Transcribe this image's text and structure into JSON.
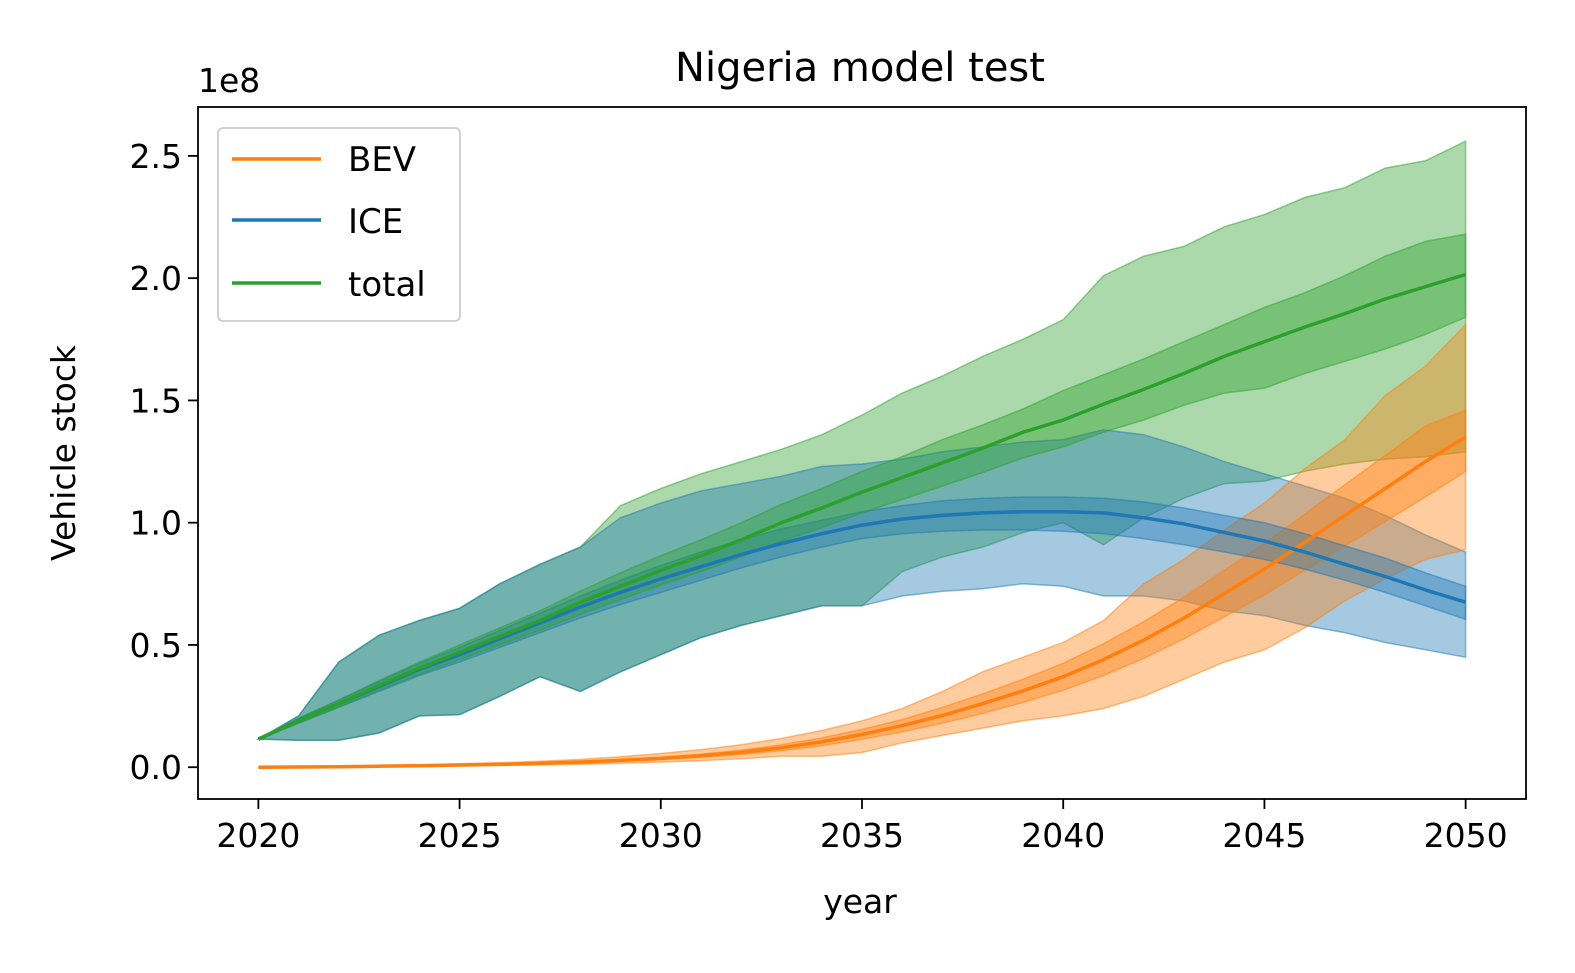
{
  "chart_data": {
    "type": "line",
    "title": "Nigeria model test",
    "xlabel": "year",
    "ylabel": "Vehicle stock",
    "offset_label": "1e8",
    "xlim": [
      2018.5,
      2051.5
    ],
    "ylim": [
      -0.13,
      2.7
    ],
    "xticks": [
      2020,
      2025,
      2030,
      2035,
      2040,
      2045,
      2050
    ],
    "xtick_labels": [
      "2020",
      "2025",
      "2030",
      "2035",
      "2040",
      "2045",
      "2050"
    ],
    "yticks": [
      0.0,
      0.5,
      1.0,
      1.5,
      2.0,
      2.5
    ],
    "ytick_labels": [
      "0.0",
      "0.5",
      "1.0",
      "1.5",
      "2.0",
      "2.5"
    ],
    "grid": false,
    "legend_position": "top-left",
    "x": [
      2020,
      2021,
      2022,
      2023,
      2024,
      2025,
      2026,
      2027,
      2028,
      2029,
      2030,
      2031,
      2032,
      2033,
      2034,
      2035,
      2036,
      2037,
      2038,
      2039,
      2040,
      2041,
      2042,
      2043,
      2044,
      2045,
      2046,
      2047,
      2048,
      2049,
      2050
    ],
    "series": [
      {
        "name": "BEV",
        "color": "#ff7f0e",
        "values": [
          0.0,
          0.001,
          0.002,
          0.004,
          0.006,
          0.009,
          0.012,
          0.016,
          0.021,
          0.028,
          0.036,
          0.047,
          0.061,
          0.08,
          0.104,
          0.134,
          0.17,
          0.212,
          0.26,
          0.312,
          0.37,
          0.44,
          0.52,
          0.61,
          0.71,
          0.81,
          0.92,
          1.03,
          1.14,
          1.25,
          1.35
        ],
        "inner_low": [
          0.0,
          0.001,
          0.002,
          0.003,
          0.005,
          0.008,
          0.011,
          0.014,
          0.018,
          0.024,
          0.031,
          0.04,
          0.052,
          0.068,
          0.088,
          0.114,
          0.145,
          0.18,
          0.22,
          0.265,
          0.315,
          0.375,
          0.445,
          0.525,
          0.615,
          0.705,
          0.805,
          0.905,
          1.005,
          1.105,
          1.21
        ],
        "inner_high": [
          0.0,
          0.001,
          0.002,
          0.005,
          0.007,
          0.01,
          0.013,
          0.018,
          0.024,
          0.032,
          0.041,
          0.054,
          0.07,
          0.092,
          0.12,
          0.155,
          0.195,
          0.245,
          0.3,
          0.36,
          0.425,
          0.505,
          0.595,
          0.695,
          0.805,
          0.915,
          1.035,
          1.155,
          1.275,
          1.395,
          1.46
        ],
        "outer_low": [
          0.0,
          0.0,
          0.001,
          0.002,
          0.003,
          0.005,
          0.007,
          0.009,
          0.012,
          0.016,
          0.021,
          0.027,
          0.035,
          0.045,
          0.045,
          0.06,
          0.1,
          0.13,
          0.16,
          0.19,
          0.21,
          0.24,
          0.29,
          0.36,
          0.43,
          0.48,
          0.57,
          0.68,
          0.77,
          0.85,
          0.89
        ],
        "outer_high": [
          0.0,
          0.002,
          0.004,
          0.007,
          0.01,
          0.014,
          0.018,
          0.024,
          0.032,
          0.043,
          0.056,
          0.072,
          0.092,
          0.118,
          0.15,
          0.19,
          0.24,
          0.31,
          0.39,
          0.45,
          0.51,
          0.6,
          0.75,
          0.85,
          0.97,
          1.08,
          1.22,
          1.34,
          1.52,
          1.64,
          1.81
        ]
      },
      {
        "name": "ICE",
        "color": "#1f77b4",
        "values": [
          0.115,
          0.19,
          0.26,
          0.33,
          0.4,
          0.46,
          0.525,
          0.59,
          0.655,
          0.715,
          0.77,
          0.82,
          0.87,
          0.915,
          0.955,
          0.99,
          1.015,
          1.03,
          1.04,
          1.045,
          1.045,
          1.04,
          1.02,
          0.995,
          0.96,
          0.925,
          0.88,
          0.83,
          0.78,
          0.725,
          0.675
        ],
        "inner_low": [
          0.115,
          0.18,
          0.245,
          0.31,
          0.375,
          0.43,
          0.49,
          0.55,
          0.61,
          0.665,
          0.715,
          0.765,
          0.815,
          0.86,
          0.9,
          0.935,
          0.955,
          0.965,
          0.97,
          0.97,
          0.965,
          0.955,
          0.935,
          0.91,
          0.88,
          0.85,
          0.81,
          0.765,
          0.715,
          0.66,
          0.605
        ],
        "inner_high": [
          0.115,
          0.2,
          0.275,
          0.35,
          0.425,
          0.49,
          0.56,
          0.63,
          0.7,
          0.765,
          0.825,
          0.88,
          0.93,
          0.975,
          1.01,
          1.045,
          1.07,
          1.09,
          1.1,
          1.105,
          1.105,
          1.1,
          1.085,
          1.06,
          1.03,
          1.0,
          0.955,
          0.905,
          0.855,
          0.795,
          0.74
        ],
        "outer_low": [
          0.115,
          0.11,
          0.11,
          0.14,
          0.21,
          0.215,
          0.29,
          0.37,
          0.31,
          0.39,
          0.46,
          0.53,
          0.58,
          0.62,
          0.66,
          0.66,
          0.7,
          0.72,
          0.73,
          0.75,
          0.74,
          0.7,
          0.7,
          0.68,
          0.64,
          0.62,
          0.58,
          0.55,
          0.51,
          0.48,
          0.45
        ],
        "outer_high": [
          0.115,
          0.21,
          0.43,
          0.54,
          0.6,
          0.65,
          0.75,
          0.83,
          0.9,
          1.02,
          1.08,
          1.13,
          1.16,
          1.19,
          1.23,
          1.24,
          1.26,
          1.29,
          1.31,
          1.33,
          1.34,
          1.38,
          1.36,
          1.31,
          1.25,
          1.2,
          1.15,
          1.1,
          1.03,
          0.95,
          0.88
        ]
      },
      {
        "name": "total",
        "color": "#2ca02c",
        "values": [
          0.115,
          0.19,
          0.26,
          0.335,
          0.405,
          0.47,
          0.535,
          0.6,
          0.675,
          0.74,
          0.805,
          0.865,
          0.93,
          1.0,
          1.06,
          1.125,
          1.185,
          1.245,
          1.305,
          1.37,
          1.42,
          1.485,
          1.545,
          1.61,
          1.68,
          1.74,
          1.8,
          1.855,
          1.915,
          1.965,
          2.015
        ],
        "inner_low": [
          0.115,
          0.18,
          0.245,
          0.315,
          0.38,
          0.44,
          0.5,
          0.56,
          0.625,
          0.685,
          0.745,
          0.8,
          0.86,
          0.925,
          0.98,
          1.04,
          1.095,
          1.15,
          1.205,
          1.265,
          1.31,
          1.37,
          1.42,
          1.48,
          1.53,
          1.55,
          1.61,
          1.66,
          1.71,
          1.77,
          1.84
        ],
        "inner_high": [
          0.115,
          0.2,
          0.275,
          0.355,
          0.43,
          0.5,
          0.57,
          0.64,
          0.72,
          0.795,
          0.865,
          0.93,
          1.0,
          1.075,
          1.14,
          1.21,
          1.27,
          1.34,
          1.4,
          1.465,
          1.54,
          1.605,
          1.67,
          1.74,
          1.81,
          1.88,
          1.94,
          2.01,
          2.09,
          2.15,
          2.18
        ]
      }
    ],
    "total_outer_low": [
      0.115,
      0.11,
      0.11,
      0.14,
      0.21,
      0.215,
      0.29,
      0.37,
      0.31,
      0.39,
      0.46,
      0.53,
      0.58,
      0.62,
      0.66,
      0.66,
      0.8,
      0.86,
      0.9,
      0.96,
      1.0,
      0.91,
      1.02,
      1.1,
      1.16,
      1.17,
      1.21,
      1.24,
      1.26,
      1.27,
      1.29
    ],
    "total_outer_high": [
      0.115,
      0.21,
      0.43,
      0.54,
      0.6,
      0.65,
      0.75,
      0.83,
      0.9,
      1.07,
      1.14,
      1.2,
      1.25,
      1.3,
      1.36,
      1.44,
      1.53,
      1.6,
      1.68,
      1.75,
      1.83,
      2.01,
      2.09,
      2.13,
      2.21,
      2.26,
      2.33,
      2.37,
      2.45,
      2.48,
      2.56
    ],
    "total_color": "#2ca02c"
  }
}
